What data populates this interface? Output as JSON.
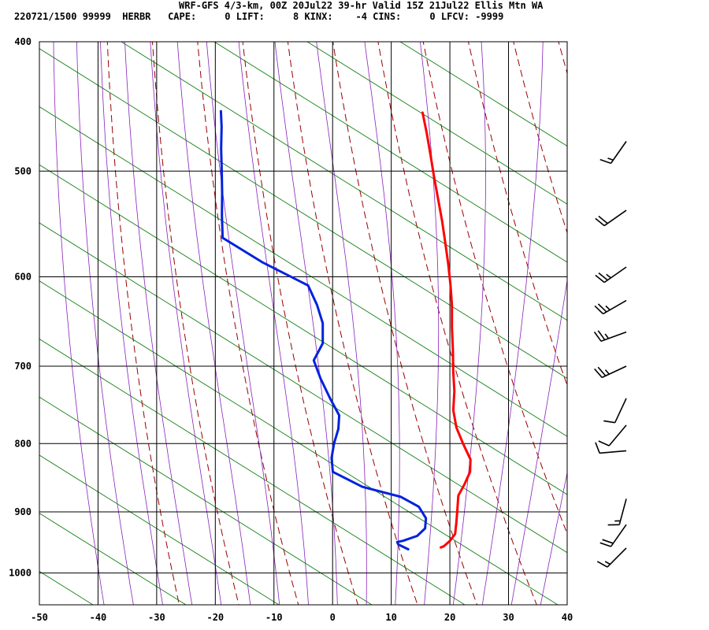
{
  "header": {
    "title": "WRF-GFS 4/3-km, 00Z 20Jul22 39-hr Valid 15Z 21Jul22 Ellis Mtn WA",
    "line2": "220721/1500 99999  HERBR   CAPE:     0 LIFT:     8 KINX:    -4 CINS:     0 LFCV: -9999"
  },
  "chart_data": {
    "type": "skew-t",
    "x_ticks": [
      -50,
      -40,
      -30,
      -20,
      -10,
      0,
      10,
      20,
      30,
      40
    ],
    "p_ticks": [
      400,
      500,
      600,
      700,
      800,
      900,
      1000
    ],
    "xlim": [
      -50,
      40
    ],
    "plim": [
      400,
      1040
    ],
    "grid": true,
    "colors": {
      "temperature": "#ff0000",
      "dewpoint": "#0022dd",
      "dry_adiabat": "#990000",
      "moist_adiabat": "#8822bb",
      "mixing_ratio": "#007700",
      "grid": "#000000"
    },
    "series": [
      {
        "key": "temperature",
        "points": [
          [
            13.6,
            957
          ],
          [
            14.0,
            955
          ],
          [
            14.6,
            946
          ],
          [
            14.9,
            935
          ],
          [
            14.2,
            918
          ],
          [
            13.3,
            898
          ],
          [
            12.2,
            875
          ],
          [
            12.3,
            858
          ],
          [
            12.2,
            840
          ],
          [
            11.2,
            822
          ],
          [
            8.6,
            800
          ],
          [
            6.1,
            778
          ],
          [
            4.1,
            755
          ],
          [
            2.7,
            731
          ],
          [
            0.8,
            706
          ],
          [
            -1.1,
            680
          ],
          [
            -3.1,
            655
          ],
          [
            -5.0,
            630
          ],
          [
            -7.0,
            608
          ],
          [
            -9.1,
            587
          ],
          [
            -11.5,
            565
          ],
          [
            -13.8,
            545
          ],
          [
            -16.3,
            525
          ],
          [
            -18.9,
            505
          ],
          [
            -21.4,
            486
          ],
          [
            -23.9,
            468
          ],
          [
            -26.3,
            452
          ]
        ]
      },
      {
        "key": "dewpoint",
        "points": [
          [
            8.2,
            960
          ],
          [
            6.1,
            952
          ],
          [
            5.7,
            948
          ],
          [
            6.6,
            946
          ],
          [
            8.6,
            938
          ],
          [
            9.3,
            926
          ],
          [
            8.6,
            910
          ],
          [
            6.4,
            892
          ],
          [
            2.5,
            877
          ],
          [
            -4.9,
            862
          ],
          [
            -11.2,
            840
          ],
          [
            -12.6,
            820
          ],
          [
            -13.4,
            800
          ],
          [
            -13.9,
            780
          ],
          [
            -14.9,
            762
          ],
          [
            -17.9,
            740
          ],
          [
            -21.2,
            715
          ],
          [
            -23.9,
            693
          ],
          [
            -23.8,
            673
          ],
          [
            -25.5,
            650
          ],
          [
            -28.0,
            630
          ],
          [
            -31.2,
            609
          ],
          [
            -41.0,
            585
          ],
          [
            -49.8,
            561
          ],
          [
            -51.8,
            540
          ],
          [
            -53.6,
            520
          ],
          [
            -55.6,
            500
          ],
          [
            -57.6,
            481
          ],
          [
            -59.4,
            463
          ],
          [
            -60.8,
            451
          ]
        ]
      }
    ],
    "wind_barbs": [
      {
        "p": 958,
        "dir_deg": 225,
        "speed_kt": 15
      },
      {
        "p": 920,
        "dir_deg": 215,
        "speed_kt": 20
      },
      {
        "p": 880,
        "dir_deg": 195,
        "speed_kt": 15
      },
      {
        "p": 810,
        "dir_deg": 265,
        "speed_kt": 10
      },
      {
        "p": 775,
        "dir_deg": 220,
        "speed_kt": 10
      },
      {
        "p": 740,
        "dir_deg": 205,
        "speed_kt": 10
      },
      {
        "p": 700,
        "dir_deg": 245,
        "speed_kt": 25
      },
      {
        "p": 660,
        "dir_deg": 250,
        "speed_kt": 25
      },
      {
        "p": 625,
        "dir_deg": 240,
        "speed_kt": 25
      },
      {
        "p": 590,
        "dir_deg": 235,
        "speed_kt": 25
      },
      {
        "p": 535,
        "dir_deg": 235,
        "speed_kt": 20
      },
      {
        "p": 475,
        "dir_deg": 215,
        "speed_kt": 15
      }
    ]
  }
}
